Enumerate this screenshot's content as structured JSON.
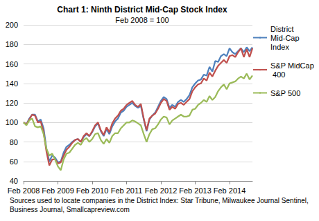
{
  "chart_data": {
    "type": "line",
    "title": "Chart 1: Ninth District Mid-Cap Stock Index",
    "subtitle": "Feb 2008 = 100",
    "annotations": [
      "Sources used to locate companies in the District Index: Star Tribune, Milwaukee Journal Sentinel, Business Journal, Smallcapreview.com"
    ],
    "categories": [
      "Feb 2008",
      null,
      null,
      null,
      null,
      null,
      null,
      null,
      null,
      null,
      null,
      null,
      "Feb 2009",
      null,
      null,
      null,
      null,
      null,
      null,
      null,
      null,
      null,
      null,
      null,
      "Feb 2010",
      null,
      null,
      null,
      null,
      null,
      null,
      null,
      null,
      null,
      null,
      null,
      "Feb 2011",
      null,
      null,
      null,
      null,
      null,
      null,
      null,
      null,
      null,
      null,
      null,
      "Feb 2012",
      null,
      null,
      null,
      null,
      null,
      null,
      null,
      null,
      null,
      null,
      null,
      "Feb 2013",
      null,
      null,
      null,
      null,
      null,
      null,
      null,
      null,
      null,
      null,
      null,
      "Feb 2014",
      null,
      null,
      null,
      null,
      null,
      null,
      null,
      null
    ],
    "series": [
      {
        "name": "District Mid-Cap Index",
        "color": "#4f81bd",
        "values": [
          100,
          98,
          104,
          108,
          108,
          101,
          103,
          94,
          73,
          60,
          66,
          64,
          59,
          60,
          69,
          75,
          77,
          80,
          82,
          83,
          80,
          85,
          88,
          86,
          90,
          96,
          99,
          91,
          86,
          93,
          88,
          96,
          101,
          104,
          110,
          112,
          116,
          118,
          120,
          117,
          115,
          117,
          103,
          91,
          103,
          107,
          110,
          116,
          122,
          126,
          124,
          115,
          118,
          116,
          121,
          123,
          121,
          124,
          128,
          136,
          140,
          143,
          144,
          149,
          148,
          157,
          152,
          163,
          162,
          168,
          170,
          168,
          176,
          172,
          170,
          173,
          176,
          172,
          177,
          173,
          177
        ]
      },
      {
        "name": "S&P MidCap 400",
        "color": "#c0504d",
        "values": [
          100,
          98,
          103,
          108,
          107,
          100,
          101,
          90,
          70,
          56,
          62,
          62,
          58,
          59,
          66,
          72,
          75,
          79,
          82,
          83,
          80,
          86,
          89,
          86,
          91,
          97,
          100,
          92,
          87,
          95,
          90,
          99,
          104,
          107,
          112,
          114,
          118,
          120,
          122,
          118,
          116,
          119,
          104,
          92,
          104,
          107,
          109,
          114,
          120,
          124,
          122,
          113,
          116,
          114,
          119,
          120,
          118,
          121,
          124,
          132,
          136,
          139,
          140,
          145,
          143,
          151,
          147,
          153,
          158,
          161,
          164,
          161,
          168,
          169,
          167,
          172,
          176,
          167,
          175,
          167,
          176
        ]
      },
      {
        "name": "S&P 500",
        "color": "#9bbb59",
        "values": [
          100,
          97,
          102,
          104,
          96,
          95,
          96,
          88,
          73,
          66,
          68,
          62,
          55,
          51,
          62,
          68,
          69,
          73,
          77,
          79,
          77,
          82,
          84,
          80,
          83,
          88,
          89,
          82,
          78,
          83,
          79,
          86,
          89,
          89,
          94,
          97,
          100,
          100,
          102,
          101,
          99,
          97,
          88,
          80,
          88,
          93,
          94,
          98,
          103,
          106,
          105,
          98,
          102,
          104,
          106,
          108,
          106,
          106,
          107,
          113,
          114,
          118,
          120,
          123,
          121,
          127,
          123,
          126,
          132,
          136,
          139,
          134,
          140,
          141,
          142,
          145,
          147,
          145,
          150,
          144,
          148
        ]
      }
    ],
    "ylim": [
      40,
      200
    ],
    "yticks": [
      40,
      60,
      80,
      100,
      120,
      140,
      160,
      180,
      200
    ],
    "grid": true,
    "legend": "right"
  }
}
